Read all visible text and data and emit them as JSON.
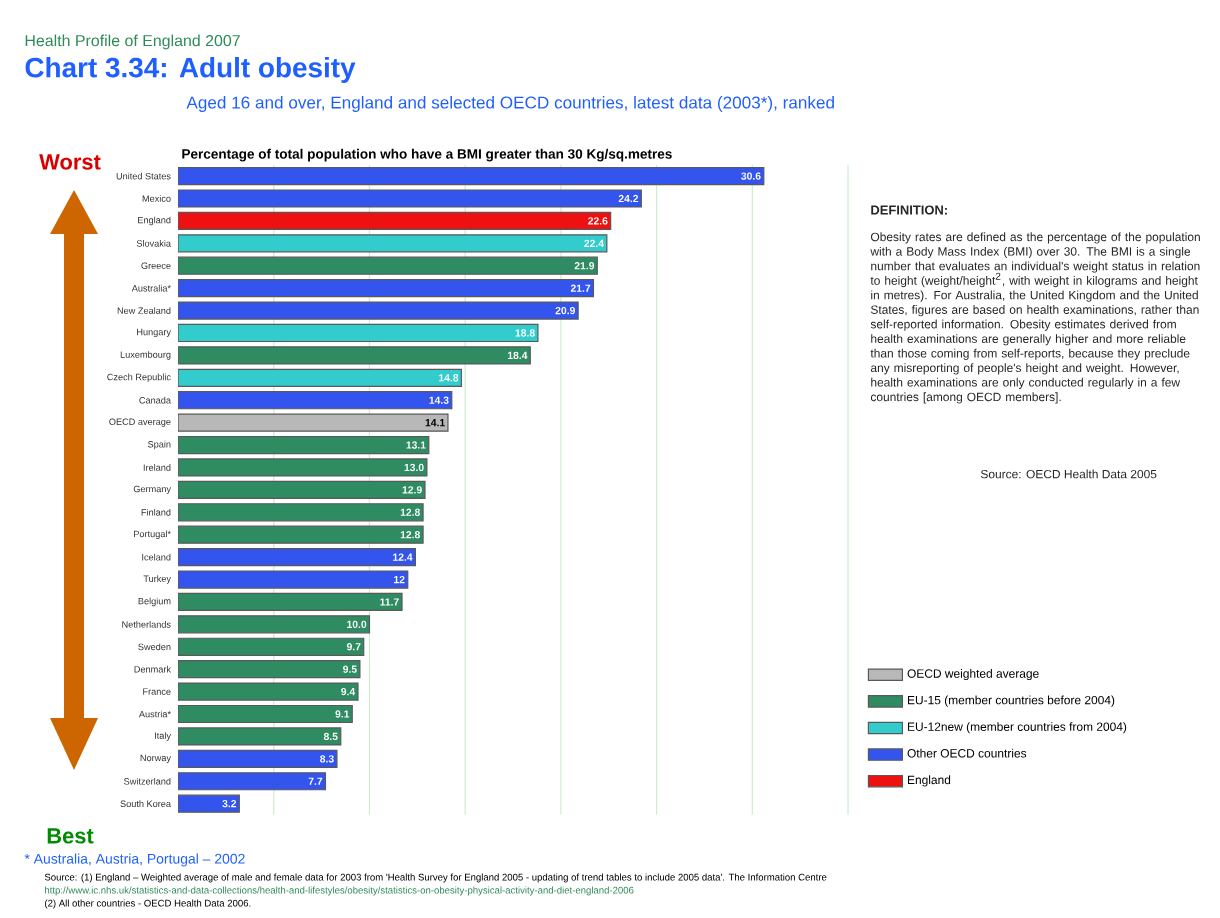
{
  "chart_data": {
    "type": "bar",
    "orientation": "horizontal",
    "stacked": true,
    "title": "Chart 3.34: Adult obesity",
    "subtitle": "Aged 16 and over, England and selected OECD countries, latest data (2003*), ranked",
    "xlabel": "Percentage of total population who have a BMI greater than 30 Kg/sq.metres",
    "categories": [
      "United States",
      "Mexico",
      "England",
      "Slovakia",
      "Greece",
      "Australia*",
      "New Zealand",
      "Hungary",
      "Luxembourg",
      "Czech Republic",
      "Canada",
      "OECD average",
      "Spain",
      "Ireland",
      "Germany",
      "Finland",
      "Portugal*",
      "Iceland",
      "Turkey",
      "Belgium",
      "Netherlands",
      "Sweden",
      "Denmark",
      "France",
      "Austria*",
      "Italy",
      "Norway",
      "Switzerland",
      "South Korea"
    ],
    "series": [
      {
        "name": "OECD weighted average",
        "color": "#b8b8b8",
        "values": [
          null,
          null,
          null,
          null,
          null,
          null,
          null,
          null,
          null,
          null,
          null,
          14.1,
          null,
          null,
          null,
          null,
          null,
          null,
          null,
          null,
          null,
          null,
          null,
          null,
          null,
          null,
          null,
          null,
          null
        ],
        "value_labels": [
          null,
          null,
          null,
          null,
          null,
          null,
          null,
          null,
          null,
          null,
          null,
          "14.1",
          null,
          null,
          null,
          null,
          null,
          null,
          null,
          null,
          null,
          null,
          null,
          null,
          null,
          null,
          null,
          null,
          null
        ]
      },
      {
        "name": "EU-15 (member countries before 2004)",
        "color": "#2e8b62",
        "values": [
          null,
          null,
          null,
          null,
          21.9,
          null,
          null,
          null,
          18.4,
          null,
          null,
          null,
          13.1,
          13.0,
          12.9,
          12.8,
          12.8,
          null,
          null,
          11.7,
          10.0,
          9.7,
          9.5,
          9.4,
          9.1,
          8.5,
          null,
          null,
          null
        ],
        "value_labels": [
          null,
          null,
          null,
          null,
          "21.9",
          null,
          null,
          null,
          "18.4",
          null,
          null,
          null,
          "13.1",
          "13.0",
          "12.9",
          "12.8",
          "12.8",
          null,
          null,
          "11.7",
          "10.0",
          "9.7",
          "9.5",
          "9.4",
          "9.1",
          "8.5",
          null,
          null,
          null
        ]
      },
      {
        "name": "EU-12new (member countries from 2004)",
        "color": "#33cccc",
        "values": [
          null,
          null,
          null,
          22.4,
          null,
          null,
          null,
          18.8,
          null,
          14.8,
          null,
          null,
          null,
          null,
          null,
          null,
          null,
          null,
          null,
          null,
          null,
          null,
          null,
          null,
          null,
          null,
          null,
          null,
          null
        ],
        "value_labels": [
          null,
          null,
          null,
          "22.4",
          null,
          null,
          null,
          "18.8",
          null,
          "14.8",
          null,
          null,
          null,
          null,
          null,
          null,
          null,
          null,
          null,
          null,
          null,
          null,
          null,
          null,
          null,
          null,
          null,
          null,
          null
        ]
      },
      {
        "name": "Other OECD countries",
        "color": "#3355ee",
        "values": [
          30.6,
          24.2,
          null,
          null,
          null,
          21.7,
          20.9,
          null,
          null,
          null,
          14.3,
          null,
          null,
          null,
          null,
          null,
          null,
          12.4,
          12,
          null,
          null,
          null,
          null,
          null,
          null,
          null,
          8.3,
          7.7,
          3.2
        ],
        "value_labels": [
          "30.6",
          "24.2",
          null,
          null,
          null,
          "21.7",
          "20.9",
          null,
          null,
          null,
          "14.3",
          null,
          null,
          null,
          null,
          null,
          null,
          "12.4",
          "12",
          null,
          null,
          null,
          null,
          null,
          null,
          null,
          "8.3",
          "7.7",
          "3.2"
        ]
      },
      {
        "name": "England",
        "color": "#ee1111",
        "values": [
          null,
          null,
          22.6,
          null,
          null,
          null,
          null,
          null,
          null,
          null,
          null,
          null,
          null,
          null,
          null,
          null,
          null,
          null,
          null,
          null,
          null,
          null,
          null,
          null,
          null,
          null,
          null,
          null,
          null
        ],
        "value_labels": [
          null,
          null,
          "22.6",
          null,
          null,
          null,
          null,
          null,
          null,
          null,
          null,
          null,
          null,
          null,
          null,
          null,
          null,
          null,
          null,
          null,
          null,
          null,
          null,
          null,
          null,
          null,
          null,
          null,
          null
        ]
      }
    ],
    "xlim": [
      0,
      35
    ],
    "xticks": [
      {
        "value": 5,
        "label": null
      },
      {
        "value": 10,
        "label": null
      },
      {
        "value": 15,
        "label": null
      },
      {
        "value": 20,
        "label": null
      },
      {
        "value": 25,
        "label": null
      },
      {
        "value": 30,
        "label": null
      },
      {
        "value": 35,
        "label": null
      }
    ],
    "tick_labels": "y",
    "grid": "x",
    "legend": "right",
    "annotations": [
      "Health Profile of England 2007",
      "Worst",
      "Best",
      "DEFINITION:",
      "Obesity rates are defined as the percentage of the population with a Body Mass Index (BMI) over 30. The BMI is a single number that evaluates an individual's weight status in relation to height (weight/height$^{2}$, with weight in kilograms and height in metres). For Australia, the United Kingdom and the United States, figures are based on health examinations, rather than self-reported information. Obesity estimates derived from health examinations are generally higher and more reliable than those coming from self-reports, because they preclude any misreporting of people's height and weight. However, health examinations are only conducted regularly in a few countries [among OECD members].",
      "Source: OECD Health Data 2005",
      "* Australia, Austria, Portugal – 2002",
      "Source: (1) England – Weighted average of male and female data for 2003 from 'Health Survey for England 2005 - updating of trend tables to include 2005 data'. The Information Centre",
      "http://www.ic.nhs.uk/statistics-and-data-collections/health-and-lifestyles/obesity/statistics-on-obesity-physical-activity-and-diet-england-2006",
      "(2) All other countries - OECD Health Data 2006."
    ]
  }
}
